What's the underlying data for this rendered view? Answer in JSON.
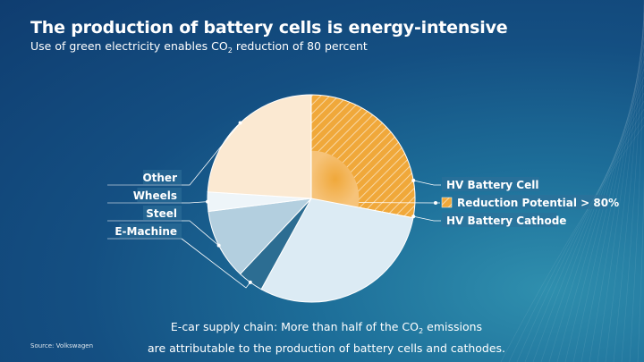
{
  "header": {
    "title": "The production of battery cells is energy-intensive",
    "subtitle_before": "Use of green electricity enables CO",
    "subtitle_sub": "2",
    "subtitle_after": " reduction of 80 percent"
  },
  "chart_data": {
    "type": "pie",
    "slices": [
      {
        "label": "HV Battery Cell",
        "value": 28,
        "color": "#f0a83a",
        "pattern": "hatched",
        "side": "right"
      },
      {
        "label": "HV Battery Cathode",
        "value": 30,
        "color": "#dcebf4",
        "side": "right"
      },
      {
        "label": "E-Machine",
        "value": 4,
        "color": "#2c6d92",
        "side": "left"
      },
      {
        "label": "Steel",
        "value": 11,
        "color": "#b3cfdf",
        "side": "left"
      },
      {
        "label": "Wheels",
        "value": 3,
        "color": "#eef5f9",
        "side": "left"
      },
      {
        "label": "Other",
        "value": 24,
        "color": "#fbe9d2",
        "side": "left"
      }
    ],
    "annotation": {
      "label": "Reduction Potential > 80%",
      "color": "#f0a83a"
    }
  },
  "footer": {
    "line1_before": "E-car supply chain: More than half of the CO",
    "line1_sub": "2",
    "line1_after": " emissions",
    "line2": "are attributable to the production of battery cells and cathodes."
  },
  "source": "Source: Volkswagen",
  "colors": {
    "accent": "#f0a83a",
    "background": "#144f82"
  }
}
